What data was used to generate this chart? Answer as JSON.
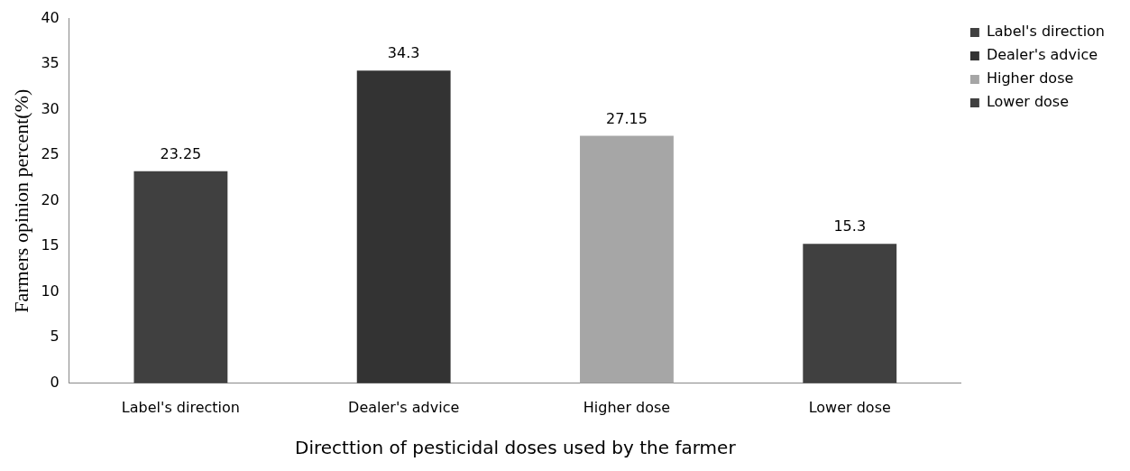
{
  "chart_data": {
    "type": "bar",
    "xlabel": "Directtion of pesticidal doses used by the farmer",
    "ylabel": "Farmers opinion percent(%)",
    "categories": [
      "Label's direction",
      "Dealer's advice",
      "Higher dose",
      "Lower dose"
    ],
    "stacked": true,
    "series": [
      {
        "name": "Label's direction",
        "color": "#404040",
        "values": [
          23.25,
          null,
          null,
          null
        ]
      },
      {
        "name": "Dealer's advice",
        "color": "#333333",
        "values": [
          null,
          34.3,
          null,
          null
        ]
      },
      {
        "name": "Higher dose",
        "color": "#a6a6a6",
        "values": [
          null,
          null,
          27.15,
          null
        ]
      },
      {
        "name": "Lower dose",
        "color": "#404040",
        "values": [
          null,
          null,
          null,
          15.3
        ]
      }
    ],
    "ylim": [
      0,
      40
    ],
    "yticks": [
      0,
      5,
      10,
      15,
      20,
      25,
      30,
      35,
      40
    ],
    "grid": false,
    "legend": "right",
    "data_labels": true
  }
}
